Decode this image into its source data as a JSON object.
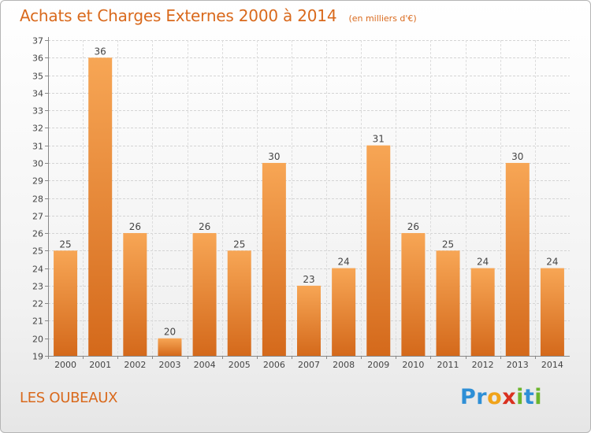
{
  "header": {
    "title": "Achats et Charges Externes 2000 à 2014",
    "subtitle": "(en milliers d'€)"
  },
  "footer": {
    "place": "LES OUBEAUX",
    "logo": [
      "P",
      "r",
      "o",
      "x",
      "i",
      "t",
      "i"
    ]
  },
  "colors": {
    "accent": "#d9691c",
    "bar_top": "#f7a655",
    "bar_bottom": "#d4691b",
    "logo": [
      "#2e8fd6",
      "#2e8fd6",
      "#f0a31a",
      "#d9301f",
      "#6cb52d",
      "#2e8fd6",
      "#6cb52d"
    ]
  },
  "chart_data": {
    "type": "bar",
    "title": "Achats et Charges Externes 2000 à 2014",
    "subtitle": "(en milliers d'€)",
    "categories": [
      "2000",
      "2001",
      "2002",
      "2003",
      "2004",
      "2005",
      "2006",
      "2007",
      "2008",
      "2009",
      "2010",
      "2011",
      "2012",
      "2013",
      "2014"
    ],
    "values": [
      25,
      36,
      26,
      20,
      26,
      25,
      30,
      23,
      24,
      31,
      26,
      25,
      24,
      30,
      24
    ],
    "ylim": [
      19,
      37
    ],
    "yticks": [
      "19",
      "20",
      "21",
      "22",
      "23",
      "24",
      "25",
      "26",
      "27",
      "28",
      "29",
      "30",
      "31",
      "32",
      "33",
      "34",
      "35",
      "36",
      "37"
    ],
    "grid": true,
    "legend": "none"
  }
}
